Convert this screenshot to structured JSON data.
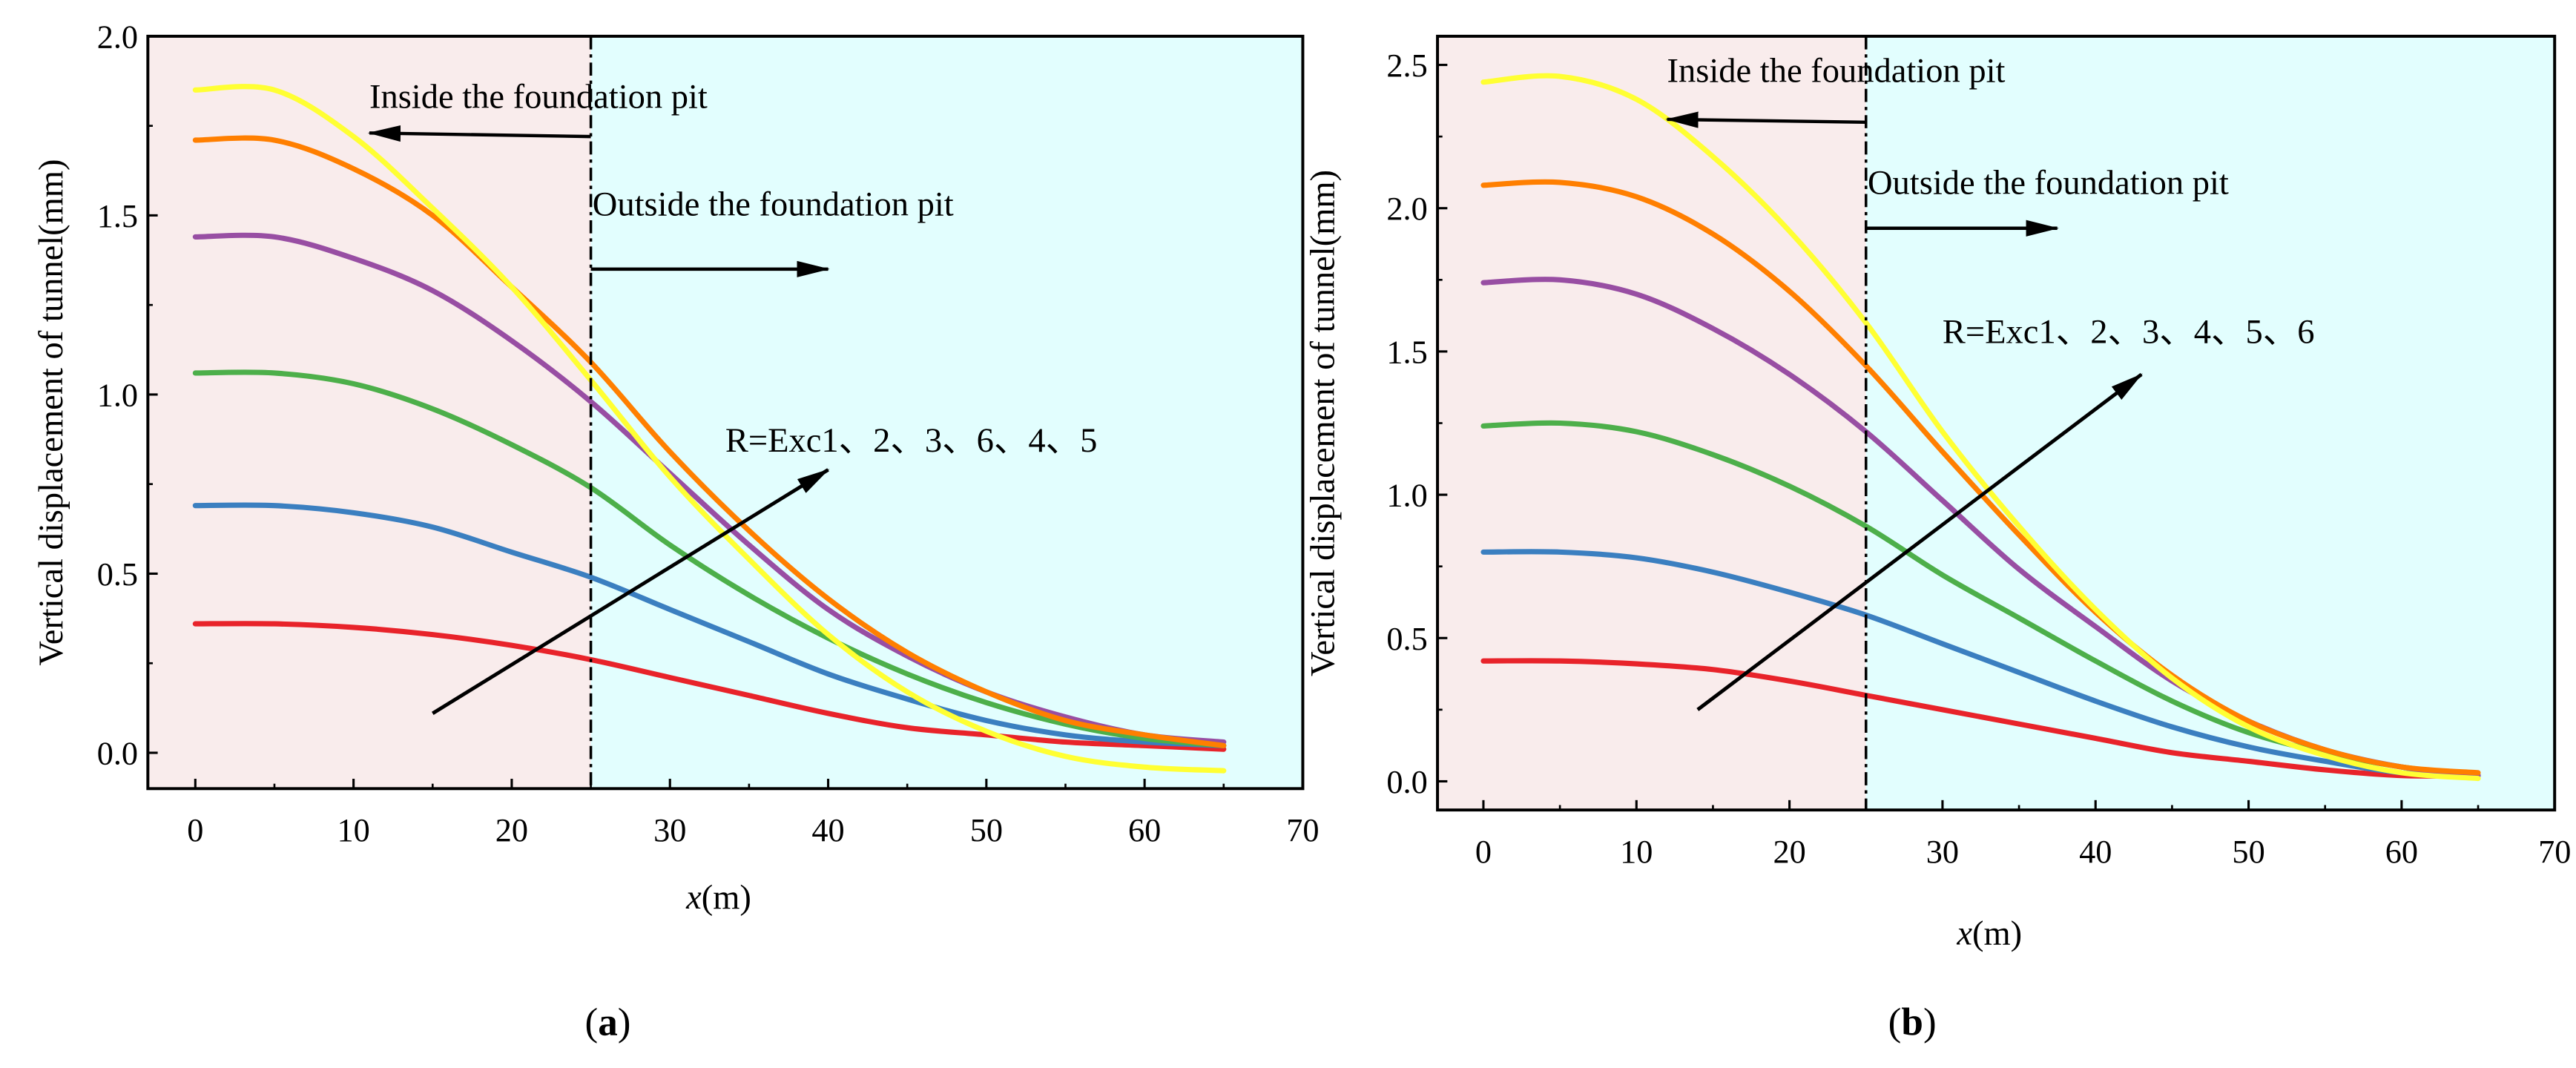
{
  "chart_data": [
    {
      "type": "line",
      "panel_label": "a",
      "xlabel_italic": "x",
      "xlabel_unit": "(m)",
      "ylabel": "Vertical displacement of tunnel(mm)",
      "xlim": [
        -3,
        70
      ],
      "ylim": [
        -0.1,
        2.0
      ],
      "xticks": [
        0,
        10,
        20,
        30,
        40,
        50,
        60,
        70
      ],
      "yticks": [
        0.0,
        0.5,
        1.0,
        1.5,
        2.0
      ],
      "ytick_labels": [
        "0.0",
        "0.5",
        "1.0",
        "1.5",
        "2.0"
      ],
      "divider_x": 25,
      "regions": {
        "inside_color": "#f9ecec",
        "outside_color": "#e2fefe"
      },
      "annotations": {
        "inside": "Inside the foundation pit",
        "outside": "Outside the foundation pit",
        "order": "R=Exc1、2、3、6、4、5"
      },
      "x": [
        0,
        5,
        10,
        15,
        20,
        25,
        30,
        35,
        40,
        45,
        50,
        55,
        60,
        65
      ],
      "series": [
        {
          "name": "Exc1",
          "color": "#e8232a",
          "values": [
            0.36,
            0.36,
            0.35,
            0.33,
            0.3,
            0.26,
            0.21,
            0.16,
            0.11,
            0.07,
            0.05,
            0.03,
            0.02,
            0.01
          ]
        },
        {
          "name": "Exc2",
          "color": "#3b7fc0",
          "values": [
            0.69,
            0.69,
            0.67,
            0.63,
            0.56,
            0.49,
            0.4,
            0.31,
            0.22,
            0.15,
            0.09,
            0.05,
            0.03,
            0.02
          ]
        },
        {
          "name": "Exc3",
          "color": "#4daf4a",
          "values": [
            1.06,
            1.06,
            1.03,
            0.96,
            0.86,
            0.74,
            0.58,
            0.44,
            0.32,
            0.22,
            0.14,
            0.08,
            0.04,
            0.02
          ]
        },
        {
          "name": "Exc4",
          "color": "#984ea3",
          "values": [
            1.44,
            1.44,
            1.38,
            1.29,
            1.15,
            0.98,
            0.78,
            0.58,
            0.4,
            0.27,
            0.17,
            0.1,
            0.05,
            0.03
          ]
        },
        {
          "name": "Exc5",
          "color": "#ff7f00",
          "values": [
            1.71,
            1.71,
            1.63,
            1.5,
            1.3,
            1.09,
            0.84,
            0.62,
            0.43,
            0.28,
            0.17,
            0.09,
            0.05,
            0.02
          ]
        },
        {
          "name": "Exc6",
          "color": "#ffff33",
          "values": [
            1.85,
            1.85,
            1.72,
            1.52,
            1.3,
            1.04,
            0.77,
            0.54,
            0.33,
            0.17,
            0.06,
            -0.01,
            -0.04,
            -0.05
          ]
        }
      ]
    },
    {
      "type": "line",
      "panel_label": "b",
      "xlabel_italic": "x",
      "xlabel_unit": "(m)",
      "ylabel": "Vertical displacement of tunnel(mm)",
      "xlim": [
        -3,
        70
      ],
      "ylim": [
        -0.1,
        2.6
      ],
      "xticks": [
        0,
        10,
        20,
        30,
        40,
        50,
        60,
        70
      ],
      "yticks": [
        0.0,
        0.5,
        1.0,
        1.5,
        2.0,
        2.5
      ],
      "ytick_labels": [
        "0.0",
        "0.5",
        "1.0",
        "1.5",
        "2.0",
        "2.5"
      ],
      "divider_x": 25,
      "regions": {
        "inside_color": "#f9ecec",
        "outside_color": "#e2fefe"
      },
      "annotations": {
        "inside": "Inside the foundation pit",
        "outside": "Outside the foundation pit",
        "order": "R=Exc1、2、3、4、5、6"
      },
      "x": [
        0,
        5,
        10,
        15,
        20,
        25,
        30,
        35,
        40,
        45,
        50,
        55,
        60,
        65
      ],
      "series": [
        {
          "name": "Exc1",
          "color": "#e8232a",
          "values": [
            0.42,
            0.42,
            0.41,
            0.39,
            0.35,
            0.3,
            0.25,
            0.2,
            0.15,
            0.1,
            0.07,
            0.04,
            0.02,
            0.02
          ]
        },
        {
          "name": "Exc2",
          "color": "#3b7fc0",
          "values": [
            0.8,
            0.8,
            0.78,
            0.73,
            0.66,
            0.58,
            0.48,
            0.38,
            0.28,
            0.19,
            0.12,
            0.07,
            0.03,
            0.02
          ]
        },
        {
          "name": "Exc3",
          "color": "#4daf4a",
          "values": [
            1.24,
            1.25,
            1.22,
            1.14,
            1.03,
            0.89,
            0.72,
            0.57,
            0.42,
            0.28,
            0.17,
            0.1,
            0.05,
            0.02
          ]
        },
        {
          "name": "Exc4",
          "color": "#984ea3",
          "values": [
            1.74,
            1.75,
            1.7,
            1.58,
            1.42,
            1.22,
            0.98,
            0.74,
            0.54,
            0.35,
            0.21,
            0.11,
            0.05,
            0.02
          ]
        },
        {
          "name": "Exc5",
          "color": "#ff7f00",
          "values": [
            2.08,
            2.09,
            2.04,
            1.91,
            1.71,
            1.45,
            1.15,
            0.86,
            0.59,
            0.37,
            0.21,
            0.11,
            0.05,
            0.03
          ]
        },
        {
          "name": "Exc6",
          "color": "#ffff33",
          "values": [
            2.44,
            2.46,
            2.38,
            2.18,
            1.92,
            1.6,
            1.22,
            0.89,
            0.6,
            0.36,
            0.19,
            0.09,
            0.03,
            0.01
          ]
        }
      ]
    }
  ]
}
